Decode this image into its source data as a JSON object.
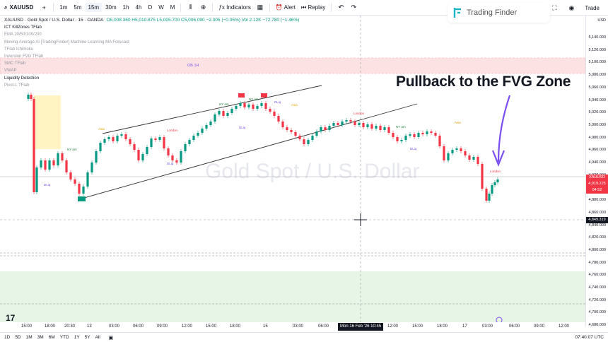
{
  "toolbar": {
    "symbol": "XAUUSD",
    "intervals": [
      "1m",
      "5m",
      "15m",
      "30m",
      "1h",
      "4h",
      "D",
      "W",
      "M"
    ],
    "active_interval": "15m",
    "indicators_label": "Indicators",
    "alert_label": "Alert",
    "replay_label": "Replay",
    "trade_label": "Trade"
  },
  "logo": {
    "text": "Trading Finder"
  },
  "legend": {
    "title": "XAUUSD · Gold Spot / U.S. Dollar · 15 · OANDA",
    "ohlc": "O5,008.360 H5,010.875 L5,005.700 C5,006.090 −2.305 (−0.05%) Vol 2.12K −72.780 (−1.46%)",
    "indicators": [
      "ICT KillZones TFlab",
      "EMA 20/50/100/200",
      "Moving Average AI [TradingFinder] Machine Learning MA Forecast",
      "TFlab Ichimoku",
      "Inversion FVG TFlab",
      "SMC TFlab",
      "VWAP",
      "Liquidity Detection",
      "Pivot-L TFlab"
    ]
  },
  "annotation": "Pullback to the FVG Zone",
  "watermark": "Gold Spot / U.S. Dollar",
  "price_scale": {
    "currency": "USD",
    "ticks": [
      "5,140.000",
      "5,120.000",
      "5,100.000",
      "5,080.000",
      "5,060.000",
      "5,040.000",
      "5,020.000",
      "5,000.000",
      "4,980.000",
      "4,960.000",
      "4,940.000",
      "4,920.000",
      "4,900.000",
      "4,880.000",
      "4,860.000",
      "4,840.000",
      "4,820.000",
      "4,800.000",
      "4,780.000",
      "4,760.000",
      "4,740.000",
      "4,720.000",
      "4,700.000",
      "4,680.000"
    ],
    "current_symbol": "XAUUSD",
    "current_price": "4,919.225",
    "countdown": "04:52",
    "cursor_price": "4,849.319"
  },
  "time_axis": {
    "ticks": [
      "15:00",
      "18:00",
      "20:30",
      "13",
      "03:00",
      "06:00",
      "09:00",
      "12:00",
      "15:00",
      "18:00",
      "15",
      "03:00",
      "06:00",
      "12:00",
      "15:00",
      "18:00",
      "17",
      "03:00",
      "06:00",
      "09:00",
      "12:00",
      "15:00",
      "18:00"
    ],
    "cursor_time": "Mon 16 Feb '26  10:45"
  },
  "bottom_bar": {
    "ranges": [
      "1D",
      "5D",
      "1M",
      "3M",
      "6M",
      "YTD",
      "1Y",
      "5Y",
      "All"
    ],
    "clock": "07:40:07 UTC"
  },
  "chart_labels": {
    "ob": "OB 1H",
    "london": "London",
    "nyam": "NY am",
    "dliq": "DLiq",
    "asia": "Asia",
    "high": "HH"
  },
  "colors": {
    "up": "#089981",
    "down": "#f23645",
    "fvg_zone": "#fde2e4",
    "demand_zone": "#e6f5e6",
    "asia_box": "#fff4c2",
    "arrow": "#7b4ff1"
  }
}
